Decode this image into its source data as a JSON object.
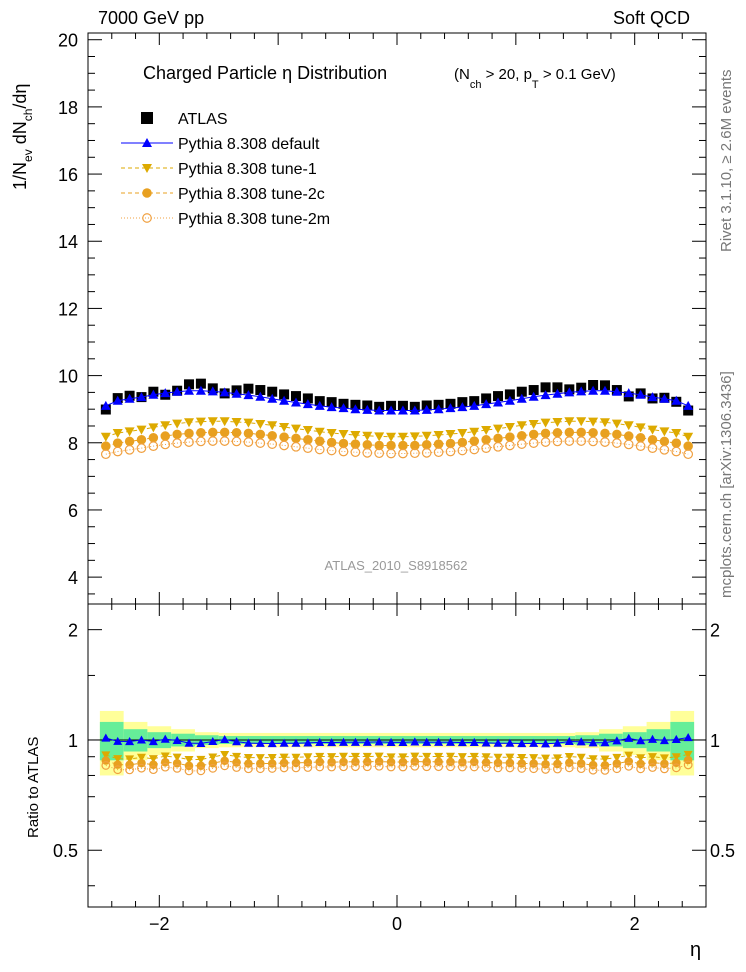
{
  "header": {
    "left": "7000 GeV pp",
    "right": "Soft QCD"
  },
  "side_labels": {
    "rivet": "Rivet 3.1.10, ≥ 2.6M events",
    "mcplots": "mcplots.cern.ch [arXiv:1306.3436]"
  },
  "chart_data": {
    "type": "scatter",
    "title_main": "Charged Particle  η Distribution",
    "title_cut": "(N",
    "title_cut_sub1": "ch",
    "title_cut_mid": " > 20, p",
    "title_cut_sub2": "T",
    "title_cut_end": " > 0.1 GeV)",
    "ylabel": "1/N",
    "ylabel_sub1": "ev",
    "ylabel_mid": " dN",
    "ylabel_sub2": "ch",
    "ylabel_end": "/dη",
    "xlabel": "η",
    "ratio_ylabel": "Ratio to ATLAS",
    "analysis_id": "ATLAS_2010_S8918562",
    "xlim": [
      -2.6,
      2.6
    ],
    "ylim": [
      3.2,
      20.2
    ],
    "ratio_ylim": [
      0.35,
      2.35
    ],
    "x_ticks": [
      -2,
      0,
      2
    ],
    "x_tick_labels": [
      "−2",
      "0",
      "2"
    ],
    "y_ticks": [
      4,
      6,
      8,
      10,
      12,
      14,
      16,
      18,
      20
    ],
    "y_tick_labels": [
      "4",
      "6",
      "8",
      "10",
      "12",
      "14",
      "16",
      "18",
      "20"
    ],
    "ratio_ticks": [
      0.5,
      1,
      2
    ],
    "ratio_tick_labels": [
      "0.5",
      "1",
      "2"
    ],
    "x": [
      -2.45,
      -2.35,
      -2.25,
      -2.15,
      -2.05,
      -1.95,
      -1.85,
      -1.75,
      -1.65,
      -1.55,
      -1.45,
      -1.35,
      -1.25,
      -1.15,
      -1.05,
      -0.95,
      -0.85,
      -0.75,
      -0.65,
      -0.55,
      -0.45,
      -0.35,
      -0.25,
      -0.15,
      -0.05,
      0.05,
      0.15,
      0.25,
      0.35,
      0.45,
      0.55,
      0.65,
      0.75,
      0.85,
      0.95,
      1.05,
      1.15,
      1.25,
      1.35,
      1.45,
      1.55,
      1.65,
      1.75,
      1.85,
      1.95,
      2.05,
      2.15,
      2.25,
      2.35,
      2.45
    ],
    "series": [
      {
        "name": "ATLAS",
        "color": "#000000",
        "marker": "square",
        "values": [
          8.99,
          9.33,
          9.4,
          9.36,
          9.52,
          9.43,
          9.55,
          9.74,
          9.76,
          9.62,
          9.47,
          9.56,
          9.61,
          9.57,
          9.52,
          9.44,
          9.39,
          9.32,
          9.24,
          9.21,
          9.16,
          9.13,
          9.11,
          9.07,
          9.1,
          9.1,
          9.07,
          9.11,
          9.13,
          9.16,
          9.21,
          9.24,
          9.32,
          9.39,
          9.44,
          9.52,
          9.57,
          9.65,
          9.65,
          9.59,
          9.64,
          9.72,
          9.71,
          9.57,
          9.38,
          9.47,
          9.32,
          9.34,
          9.22,
          8.96
        ]
      },
      {
        "name": "Pythia 8.308 default",
        "color": "#0000ff",
        "marker": "triangle-up",
        "values": [
          9.1,
          9.25,
          9.31,
          9.36,
          9.43,
          9.48,
          9.52,
          9.55,
          9.55,
          9.53,
          9.5,
          9.46,
          9.42,
          9.37,
          9.31,
          9.25,
          9.2,
          9.15,
          9.1,
          9.06,
          9.03,
          9.0,
          8.98,
          8.96,
          8.96,
          8.96,
          8.96,
          8.98,
          9.0,
          9.03,
          9.06,
          9.1,
          9.15,
          9.2,
          9.25,
          9.31,
          9.37,
          9.42,
          9.46,
          9.5,
          9.53,
          9.55,
          9.55,
          9.52,
          9.48,
          9.43,
          9.36,
          9.31,
          9.25,
          9.1
        ]
      },
      {
        "name": "Pythia 8.308 tune-1",
        "color": "#ddaa00",
        "marker": "triangle-down",
        "values": [
          8.18,
          8.29,
          8.34,
          8.39,
          8.46,
          8.52,
          8.57,
          8.61,
          8.63,
          8.64,
          8.64,
          8.62,
          8.6,
          8.56,
          8.52,
          8.47,
          8.42,
          8.38,
          8.33,
          8.29,
          8.26,
          8.23,
          8.21,
          8.19,
          8.18,
          8.18,
          8.19,
          8.21,
          8.23,
          8.26,
          8.29,
          8.33,
          8.38,
          8.42,
          8.47,
          8.52,
          8.56,
          8.6,
          8.62,
          8.64,
          8.64,
          8.63,
          8.61,
          8.57,
          8.52,
          8.46,
          8.39,
          8.34,
          8.29,
          8.18
        ]
      },
      {
        "name": "Pythia 8.308 tune-2c",
        "color": "#e8a020",
        "marker": "circle",
        "values": [
          7.9,
          7.99,
          8.04,
          8.09,
          8.15,
          8.2,
          8.25,
          8.28,
          8.3,
          8.31,
          8.31,
          8.3,
          8.28,
          8.25,
          8.21,
          8.17,
          8.13,
          8.09,
          8.05,
          8.01,
          7.98,
          7.96,
          7.94,
          7.92,
          7.92,
          7.92,
          7.92,
          7.94,
          7.96,
          7.98,
          8.01,
          8.05,
          8.09,
          8.13,
          8.17,
          8.21,
          8.25,
          8.28,
          8.3,
          8.31,
          8.31,
          8.3,
          8.28,
          8.25,
          8.2,
          8.15,
          8.09,
          8.04,
          7.99,
          7.9
        ]
      },
      {
        "name": "Pythia 8.308 tune-2m",
        "color": "#f0a040",
        "marker": "open-circle",
        "values": [
          7.66,
          7.74,
          7.79,
          7.84,
          7.9,
          7.95,
          7.99,
          8.02,
          8.04,
          8.05,
          8.05,
          8.04,
          8.02,
          7.99,
          7.96,
          7.92,
          7.88,
          7.84,
          7.8,
          7.77,
          7.74,
          7.72,
          7.7,
          7.69,
          7.68,
          7.68,
          7.69,
          7.7,
          7.72,
          7.74,
          7.77,
          7.8,
          7.84,
          7.88,
          7.92,
          7.96,
          7.99,
          8.02,
          8.04,
          8.05,
          8.05,
          8.04,
          8.02,
          7.99,
          7.95,
          7.9,
          7.84,
          7.79,
          7.74,
          7.66
        ]
      }
    ],
    "uncertainty_band": {
      "x_edges": [
        -2.5,
        -2.3,
        -2.1,
        -1.9,
        -1.7,
        -1.5,
        1.5,
        1.7,
        1.9,
        2.1,
        2.3,
        2.5
      ],
      "stat_halfwidth": [
        0.12,
        0.07,
        0.05,
        0.04,
        0.03,
        0.025,
        0.03,
        0.04,
        0.05,
        0.07,
        0.12
      ],
      "total_halfwidth": [
        0.2,
        0.12,
        0.09,
        0.07,
        0.05,
        0.045,
        0.05,
        0.07,
        0.09,
        0.12,
        0.2
      ],
      "stat_color": "#66ee99",
      "total_color": "#ffff99"
    },
    "legend_position": "top-left"
  }
}
